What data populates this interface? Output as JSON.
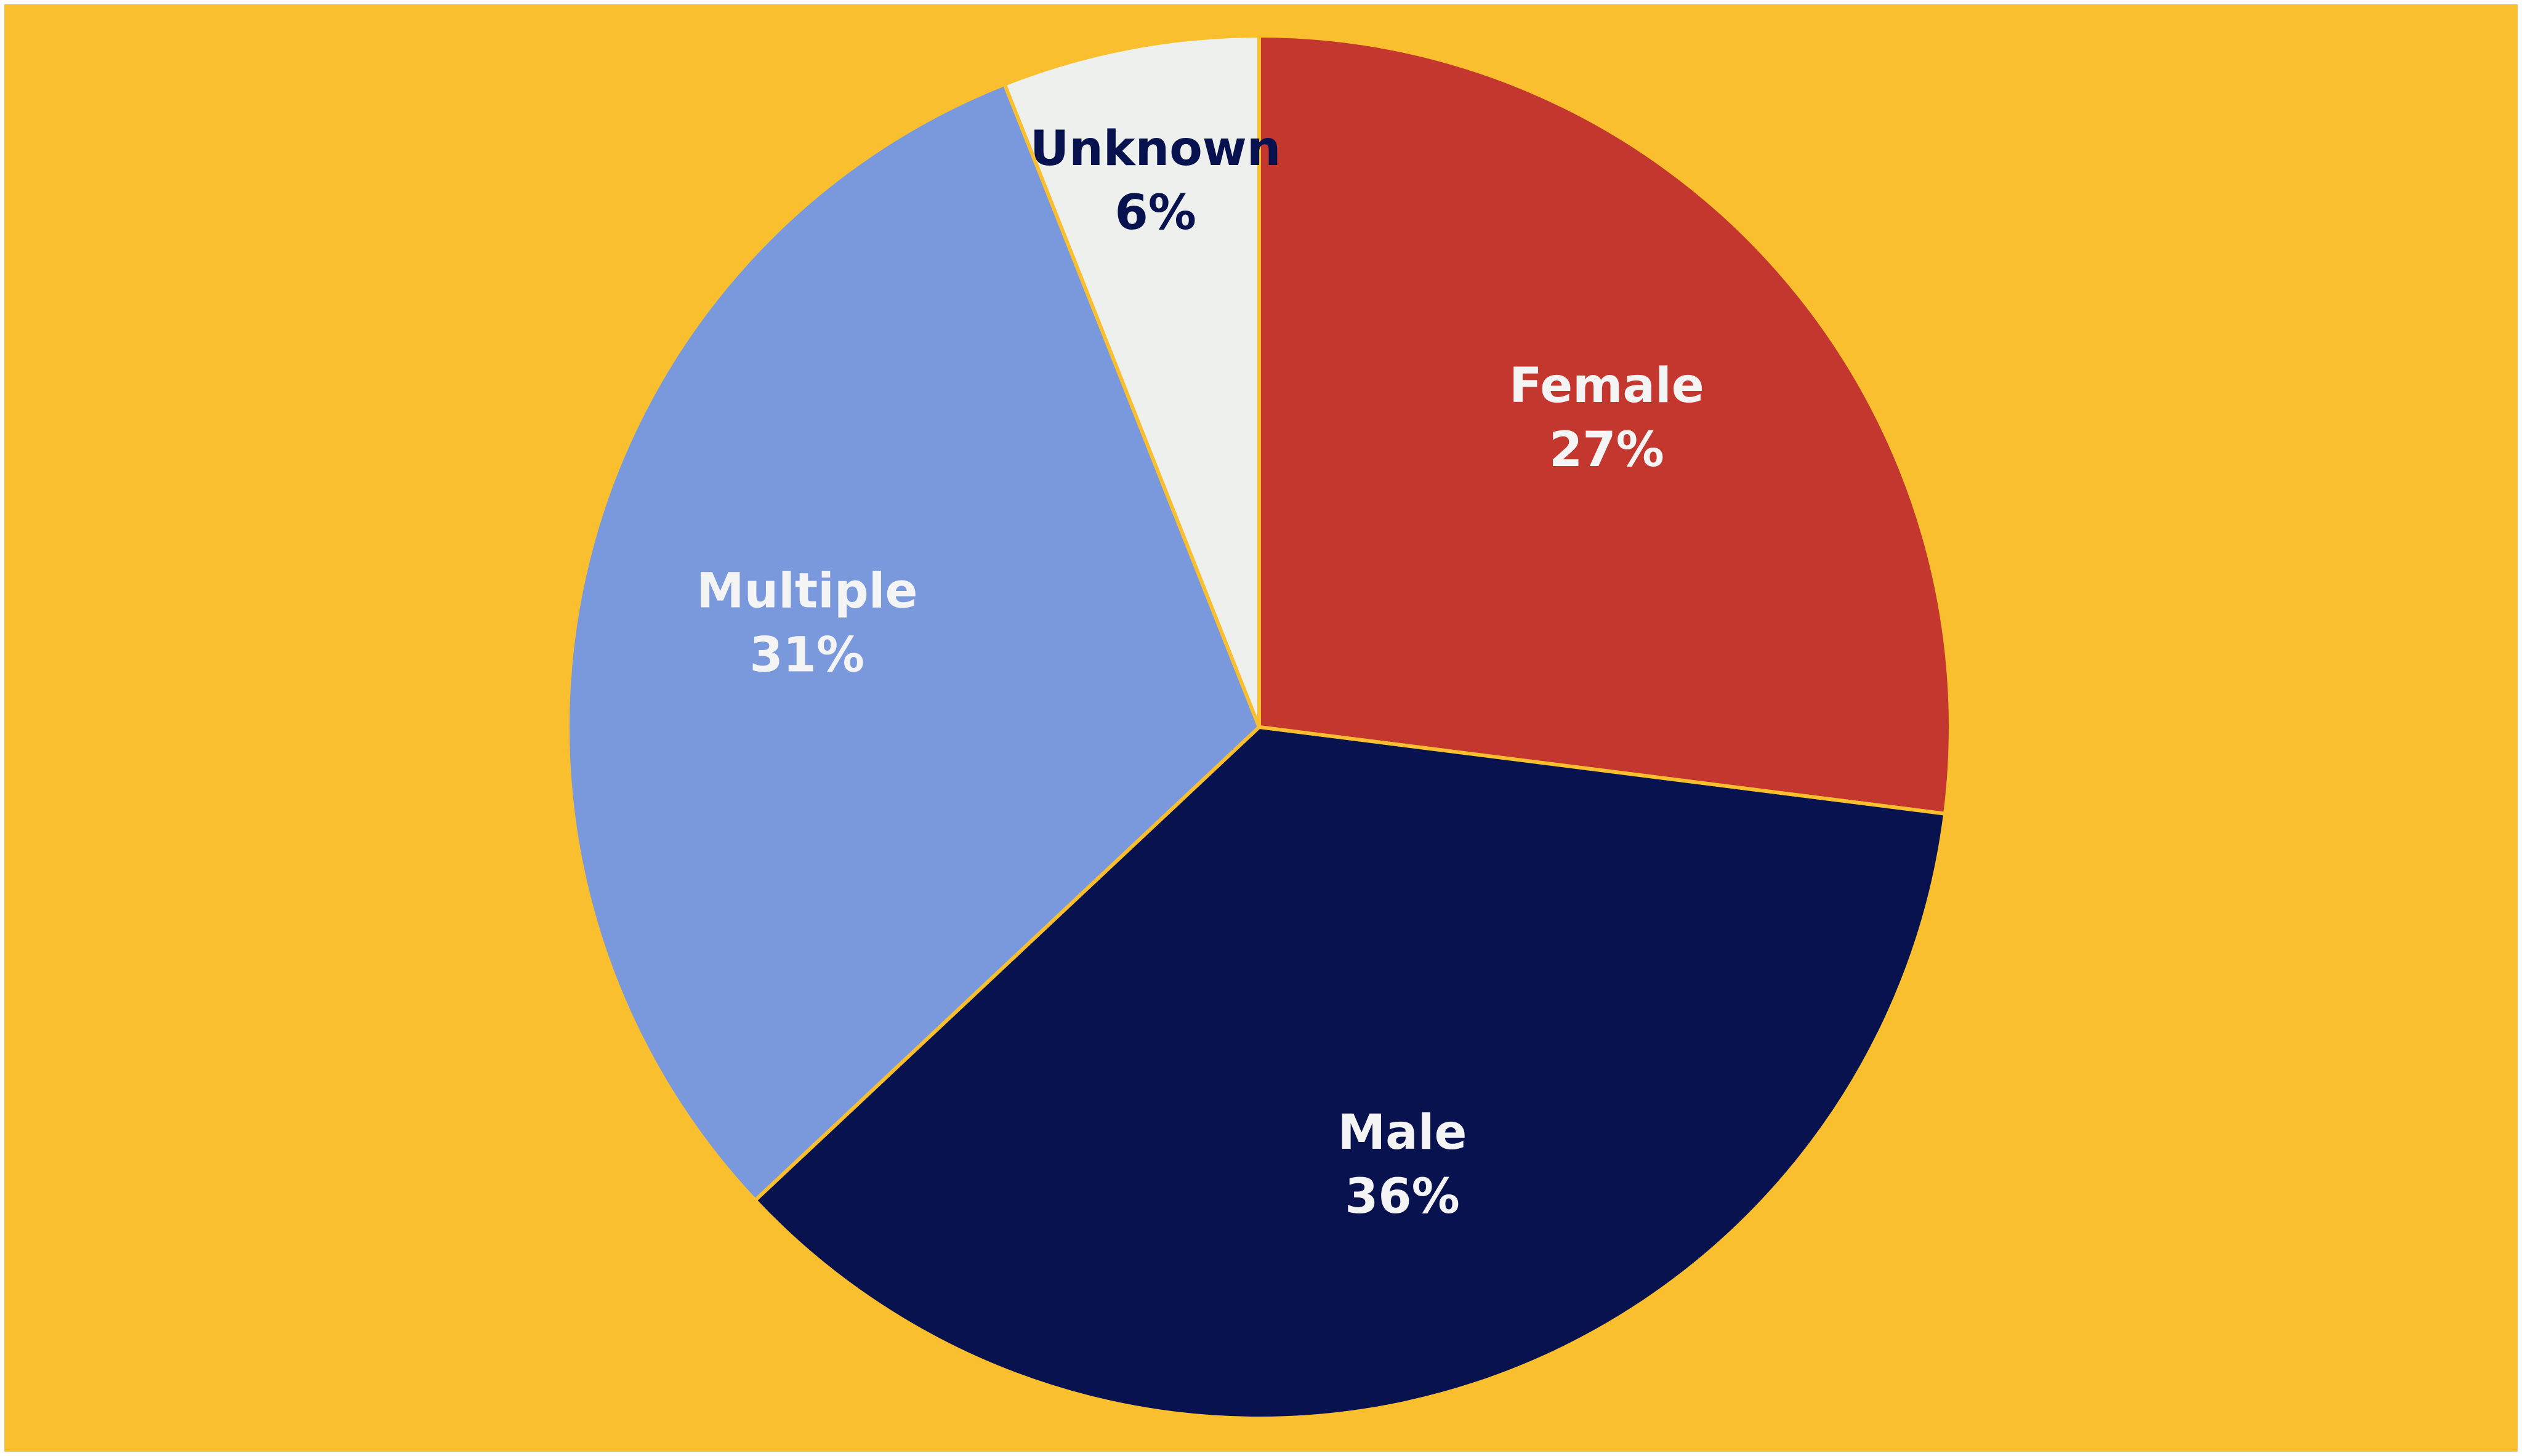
{
  "chart_data": {
    "type": "pie",
    "categories": [
      "Female",
      "Male",
      "Multiple",
      "Unknown"
    ],
    "values": [
      27,
      36,
      31,
      6
    ],
    "value_labels": [
      "27%",
      "36%",
      "31%",
      "6%"
    ],
    "colors": [
      "#c3372f",
      "#08124f",
      "#7a99dd",
      "#edf0ec"
    ],
    "label_colors": [
      "#f4f4f4",
      "#f4f4f4",
      "#f4f4f4",
      "#08124f"
    ],
    "background": "#f9bf2e",
    "start_angle": 0,
    "direction": "clockwise"
  }
}
